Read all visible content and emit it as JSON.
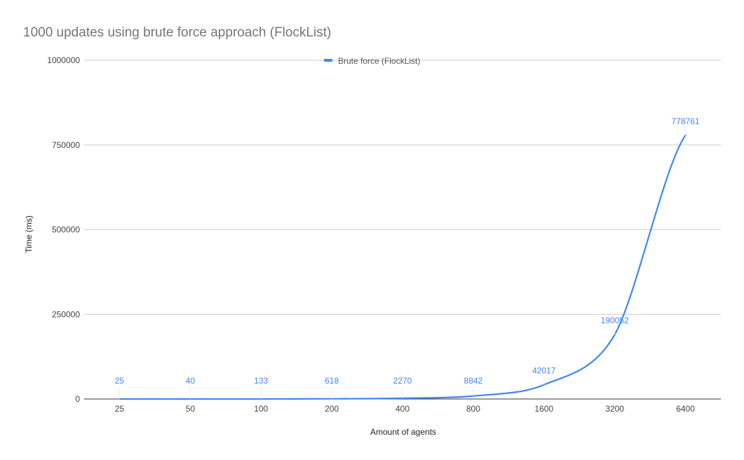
{
  "chart_data": {
    "type": "line",
    "title": "1000 updates using brute force approach (FlockList)",
    "xlabel": "Amount of agents",
    "ylabel": "Time (ms)",
    "categories": [
      "25",
      "50",
      "100",
      "200",
      "400",
      "800",
      "1600",
      "3200",
      "6400"
    ],
    "series": [
      {
        "name": "Brute force (FlockList)",
        "values": [
          25,
          40,
          133,
          618,
          2270,
          8842,
          42017,
          190052,
          778761
        ],
        "color": "#4285f4"
      }
    ],
    "ylim": [
      0,
      1000000
    ],
    "yticks": [
      0,
      250000,
      500000,
      750000,
      1000000
    ],
    "ytick_labels": [
      "0",
      "250000",
      "500000",
      "750000",
      "1000000"
    ],
    "grid": true,
    "legend_position": "top",
    "data_labels": true,
    "smooth": true
  }
}
